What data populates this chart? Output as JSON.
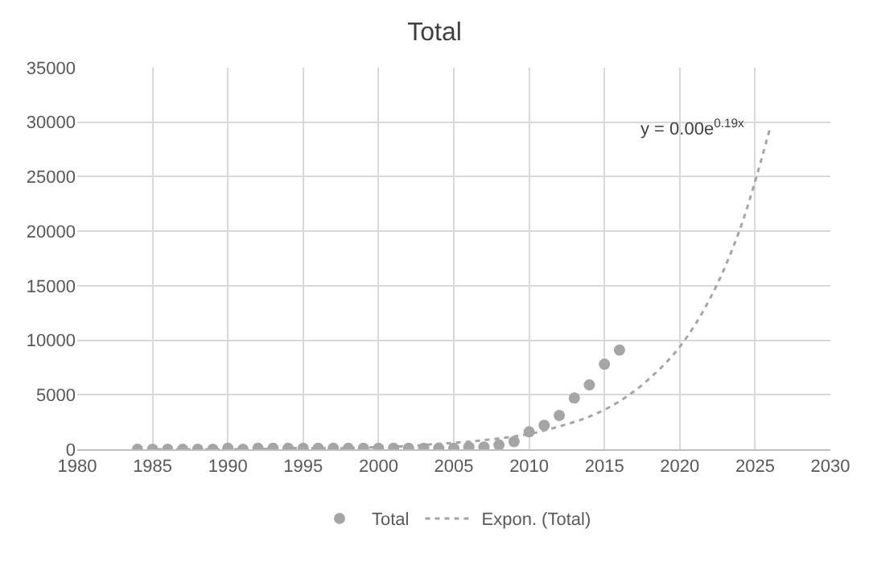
{
  "chart_data": {
    "type": "scatter",
    "title": "Total",
    "x": [
      1984,
      1985,
      1986,
      1987,
      1988,
      1989,
      1990,
      1991,
      1992,
      1993,
      1994,
      1995,
      1996,
      1997,
      1998,
      1999,
      2000,
      2001,
      2002,
      2003,
      2004,
      2005,
      2006,
      2007,
      2008,
      2009,
      2010,
      2011,
      2012,
      2013,
      2014,
      2015,
      2016
    ],
    "series": [
      {
        "name": "Total",
        "marker": "circle",
        "color": "#a5a5a5",
        "values": [
          0,
          0,
          0,
          0,
          0,
          0,
          100,
          0,
          100,
          100,
          100,
          100,
          100,
          100,
          100,
          100,
          100,
          100,
          100,
          100,
          100,
          100,
          200,
          200,
          400,
          700,
          1600,
          2200,
          3100,
          4700,
          5900,
          7800,
          9100
        ]
      },
      {
        "name": "Expon. (Total)",
        "type": "line",
        "marker": "none",
        "color": "#a5a5a5",
        "line_style": "dotted",
        "x": [
          1984,
          1986,
          1988,
          1990,
          1992,
          1994,
          1996,
          1998,
          2000,
          2002,
          2004,
          2006,
          2008,
          2010,
          2012,
          2014,
          2016,
          2018,
          2020,
          2022,
          2024,
          2026
        ],
        "values": [
          0,
          0,
          0,
          0,
          0,
          100,
          100,
          100,
          200,
          300,
          500,
          700,
          1000,
          1400,
          2100,
          3000,
          4400,
          6500,
          9400,
          13800,
          20200,
          29500
        ]
      }
    ],
    "annotations": [
      "y = 0.00e$^{0.19x}$"
    ],
    "xlim": [
      1980,
      2030
    ],
    "xticks": [
      1980,
      1985,
      1990,
      1995,
      2000,
      2005,
      2010,
      2015,
      2020,
      2025,
      2030
    ],
    "ylim": [
      0,
      35000
    ],
    "yticks": [
      0,
      5000,
      10000,
      15000,
      20000,
      25000,
      30000,
      35000
    ],
    "grid": true,
    "legend": "bottom"
  }
}
